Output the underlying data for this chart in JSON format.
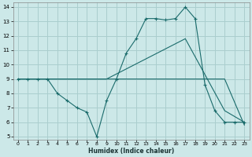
{
  "xlabel": "Humidex (Indice chaleur)",
  "background_color": "#cce8e8",
  "grid_color": "#aacece",
  "line_color": "#1a6b6b",
  "xlim": [
    -0.5,
    23.5
  ],
  "ylim": [
    4.8,
    14.3
  ],
  "xticks": [
    0,
    1,
    2,
    3,
    4,
    5,
    6,
    7,
    8,
    9,
    10,
    11,
    12,
    13,
    14,
    15,
    16,
    17,
    18,
    19,
    20,
    21,
    22,
    23
  ],
  "yticks": [
    5,
    6,
    7,
    8,
    9,
    10,
    11,
    12,
    13,
    14
  ],
  "line1_x": [
    0,
    1,
    2,
    3,
    4,
    5,
    6,
    7,
    8,
    9,
    10,
    11,
    12,
    13,
    14,
    15,
    16,
    17,
    18,
    19,
    20,
    21,
    22,
    23
  ],
  "line1_y": [
    9,
    9,
    9,
    9,
    8.0,
    7.5,
    7.0,
    6.7,
    5.0,
    7.5,
    9.0,
    10.8,
    11.8,
    13.2,
    13.2,
    13.1,
    13.2,
    14.0,
    13.2,
    8.6,
    6.8,
    6.0,
    6.0,
    6.0
  ],
  "line2_x": [
    0,
    9,
    17,
    21,
    23
  ],
  "line2_y": [
    9,
    9,
    11.8,
    6.8,
    6.0
  ],
  "line3_x": [
    0,
    9,
    17,
    21,
    23
  ],
  "line3_y": [
    9,
    9,
    9.0,
    9.0,
    5.8
  ]
}
